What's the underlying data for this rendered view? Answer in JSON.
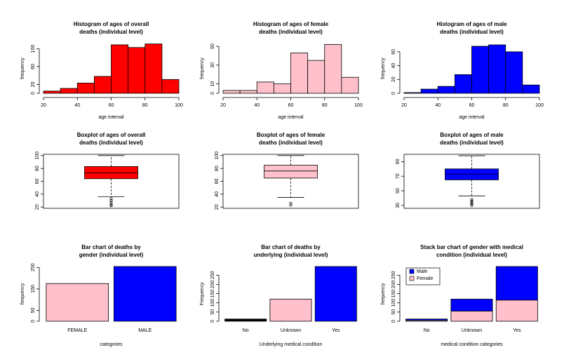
{
  "chart_data": [
    {
      "type": "histogram",
      "title": [
        "Histogram of ages of overall",
        "deaths (individual level)"
      ],
      "xlabel": "age interval",
      "ylabel": "frequency",
      "bins": [
        20,
        30,
        40,
        50,
        60,
        70,
        80,
        90,
        100
      ],
      "values": [
        5,
        11,
        23,
        38,
        109,
        103,
        111,
        31
      ],
      "color": "#ff0000",
      "xlim": [
        20,
        100
      ],
      "xticks": [
        20,
        40,
        60,
        80,
        100
      ],
      "ylim": [
        0,
        112
      ],
      "yticks": [
        0,
        20,
        60,
        100
      ]
    },
    {
      "type": "histogram",
      "title": [
        "Histogram of ages of female",
        "deaths (individual level)"
      ],
      "xlabel": "age interval",
      "ylabel": "frequency",
      "bins": [
        20,
        30,
        40,
        50,
        60,
        70,
        80,
        90,
        100
      ],
      "values": [
        3,
        3,
        12,
        10,
        43,
        35,
        52,
        17
      ],
      "color": "#ffc0cb",
      "xlim": [
        20,
        100
      ],
      "xticks": [
        20,
        40,
        60,
        80,
        100
      ],
      "ylim": [
        0,
        53
      ],
      "yticks": [
        0,
        10,
        30,
        50
      ]
    },
    {
      "type": "histogram",
      "title": [
        "Histogram of ages of male",
        "deaths (individual level)"
      ],
      "xlabel": "age interval",
      "ylabel": "frequency",
      "bins": [
        20,
        30,
        40,
        50,
        60,
        70,
        80,
        90,
        100
      ],
      "values": [
        1,
        6,
        10,
        27,
        68,
        70,
        60,
        12
      ],
      "color": "#0000ff",
      "xlim": [
        20,
        100
      ],
      "xticks": [
        20,
        40,
        60,
        80,
        100
      ],
      "ylim": [
        0,
        72
      ],
      "yticks": [
        0,
        20,
        40,
        60
      ]
    },
    {
      "type": "boxplot",
      "title": [
        "Boxplot of ages of overall",
        "deaths (individual level)"
      ],
      "color": "#ff0000",
      "whisker_low": 36,
      "q1": 64,
      "median": 73,
      "q3": 83,
      "whisker_high": 100,
      "outliers": [
        33,
        30,
        27,
        24,
        22
      ],
      "ylim": [
        18,
        102
      ],
      "yticks": [
        20,
        40,
        60,
        80,
        100
      ]
    },
    {
      "type": "boxplot",
      "title": [
        "Boxplot of ages of female",
        "deaths (individual level)"
      ],
      "color": "#ffc0cb",
      "whisker_low": 35,
      "q1": 65,
      "median": 76,
      "q3": 85,
      "whisker_high": 100,
      "outliers": [
        26,
        23
      ],
      "ylim": [
        18,
        102
      ],
      "yticks": [
        20,
        40,
        60,
        80,
        100
      ]
    },
    {
      "type": "boxplot",
      "title": [
        "Boxplot of ages of male",
        "deaths (individual level)"
      ],
      "color": "#0000ff",
      "whisker_low": 43,
      "q1": 65,
      "median": 73,
      "q3": 80,
      "whisker_high": 98,
      "outliers": [
        38,
        36,
        34,
        32,
        30
      ],
      "ylim": [
        26,
        100
      ],
      "yticks": [
        30,
        50,
        70,
        90
      ]
    },
    {
      "type": "bar",
      "title": [
        "Bar chart of deaths by",
        "gender (individual level)"
      ],
      "xlabel": "categories",
      "ylabel": "frequency",
      "categories": [
        "FEMALE",
        "MALE"
      ],
      "values": [
        175,
        254
      ],
      "colors": [
        "#ffc0cb",
        "#0000ff"
      ],
      "ylim": [
        0,
        254
      ],
      "yticks": [
        0,
        50,
        150,
        250
      ]
    },
    {
      "type": "bar",
      "title": [
        "Bar chart of deaths by",
        "underlying (individual level)"
      ],
      "xlabel": "Underlying medical condition",
      "ylabel": "Frequency",
      "categories": [
        "No",
        "Unknown",
        "Yes"
      ],
      "values": [
        12,
        120,
        297
      ],
      "colors": [
        "#000000",
        "#ffc0cb",
        "#0000ff"
      ],
      "ylim": [
        0,
        297
      ],
      "yticks": [
        0,
        50,
        100,
        150,
        200,
        250
      ]
    },
    {
      "type": "stacked_bar",
      "title": [
        "Stack bar chart of gender with medical",
        "condition  (individual level)"
      ],
      "xlabel": "medical condition categories",
      "ylabel": "frequency",
      "categories": [
        "No",
        "Unknown",
        "Yes"
      ],
      "legend": "topleft",
      "series": [
        {
          "name": "Male",
          "color": "#0000ff",
          "values": [
            7,
            65,
            182
          ]
        },
        {
          "name": "Female",
          "color": "#ffc0cb",
          "values": [
            5,
            55,
            115
          ]
        }
      ],
      "ylim": [
        0,
        297
      ],
      "yticks": [
        0,
        50,
        100,
        150,
        200,
        250
      ]
    }
  ]
}
